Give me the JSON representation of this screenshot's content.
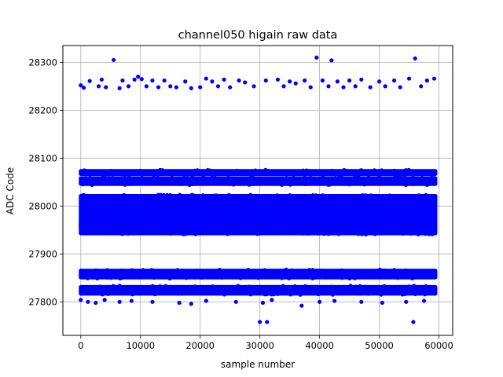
{
  "chart_data": {
    "type": "scatter",
    "title": "channel050 higain raw data",
    "xlabel": "sample number",
    "ylabel": "ADC Code",
    "xlim": [
      -3000,
      62300
    ],
    "ylim": [
      27730,
      28335
    ],
    "xticks": [
      0,
      10000,
      20000,
      30000,
      40000,
      50000,
      60000
    ],
    "yticks": [
      27800,
      27900,
      28000,
      28100,
      28200,
      28300
    ],
    "grid": true,
    "marker_color": "#0000ff",
    "x_range": [
      0,
      59400
    ],
    "bands": [
      {
        "center": 27988,
        "half_width": 33,
        "description": "dense core"
      },
      {
        "center": 27953,
        "half_width": 10,
        "description": "dense lower core"
      },
      {
        "center": 28052,
        "half_width": 6,
        "description": "upper dense band"
      },
      {
        "center": 28070,
        "half_width": 3,
        "description": "upper edge band"
      },
      {
        "center": 27858,
        "half_width": 7,
        "description": "lower dense band"
      },
      {
        "center": 27824,
        "half_width": 7,
        "description": "lower secondary band"
      }
    ],
    "sparse_points": [
      [
        5500,
        28305
      ],
      [
        39500,
        28310
      ],
      [
        42000,
        28304
      ],
      [
        56000,
        28308
      ],
      [
        0,
        28252
      ],
      [
        500,
        28247
      ],
      [
        1500,
        28261
      ],
      [
        3000,
        28250
      ],
      [
        3500,
        28264
      ],
      [
        4200,
        28248
      ],
      [
        6500,
        28246
      ],
      [
        7000,
        28262
      ],
      [
        8000,
        28250
      ],
      [
        9000,
        28264
      ],
      [
        9600,
        28270
      ],
      [
        10200,
        28265
      ],
      [
        11000,
        28250
      ],
      [
        12000,
        28262
      ],
      [
        13000,
        28248
      ],
      [
        14000,
        28262
      ],
      [
        15000,
        28250
      ],
      [
        16000,
        28248
      ],
      [
        17500,
        28260
      ],
      [
        18500,
        28246
      ],
      [
        20000,
        28248
      ],
      [
        21000,
        28266
      ],
      [
        22000,
        28260
      ],
      [
        23000,
        28250
      ],
      [
        24000,
        28264
      ],
      [
        25000,
        28248
      ],
      [
        26500,
        28262
      ],
      [
        27500,
        28258
      ],
      [
        29000,
        28250
      ],
      [
        31000,
        28262
      ],
      [
        33000,
        28264
      ],
      [
        34000,
        28250
      ],
      [
        35000,
        28260
      ],
      [
        36000,
        28256
      ],
      [
        37500,
        28262
      ],
      [
        38500,
        28248
      ],
      [
        40500,
        28262
      ],
      [
        41500,
        28250
      ],
      [
        43000,
        28260
      ],
      [
        44000,
        28248
      ],
      [
        45000,
        28262
      ],
      [
        46000,
        28250
      ],
      [
        47000,
        28264
      ],
      [
        48500,
        28248
      ],
      [
        50000,
        28260
      ],
      [
        51000,
        28250
      ],
      [
        52500,
        28262
      ],
      [
        53500,
        28248
      ],
      [
        55000,
        28266
      ],
      [
        57000,
        28250
      ],
      [
        58000,
        28262
      ],
      [
        59200,
        28266
      ],
      [
        30000,
        27758
      ],
      [
        31200,
        27758
      ],
      [
        55700,
        27758
      ],
      [
        0,
        27804
      ],
      [
        1200,
        27800
      ],
      [
        2500,
        27798
      ],
      [
        4000,
        27804
      ],
      [
        6500,
        27800
      ],
      [
        8500,
        27802
      ],
      [
        12000,
        27800
      ],
      [
        16500,
        27798
      ],
      [
        18500,
        27796
      ],
      [
        21000,
        27802
      ],
      [
        26000,
        27800
      ],
      [
        30500,
        27798
      ],
      [
        32000,
        27804
      ],
      [
        37000,
        27792
      ],
      [
        40000,
        27800
      ],
      [
        42500,
        27802
      ],
      [
        47000,
        27800
      ],
      [
        50500,
        27798
      ],
      [
        54500,
        27800
      ],
      [
        57500,
        27802
      ]
    ]
  }
}
